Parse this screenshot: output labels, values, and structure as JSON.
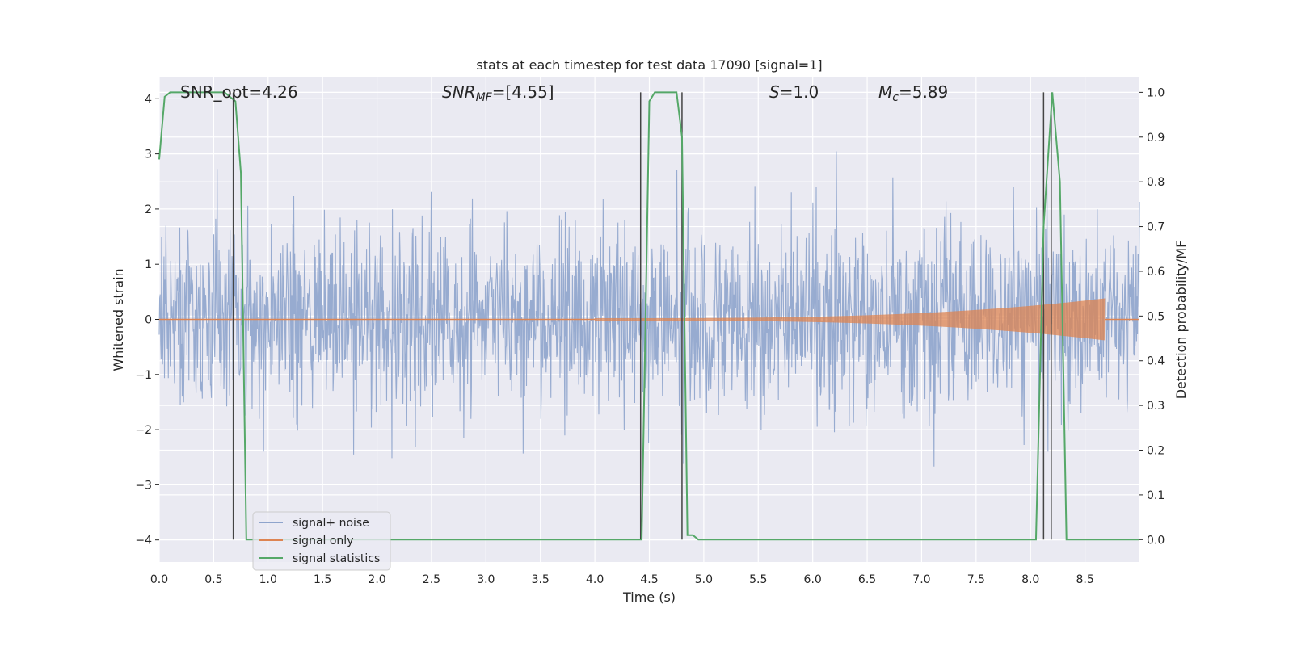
{
  "chart_data": {
    "type": "line",
    "title": "stats at each timestep for test data 17090 [signal=1]",
    "xlabel": "Time (s)",
    "ylabel": "Whitened strain",
    "ylabel_right": "Detection probability/MF",
    "xlim": [
      0.0,
      9.0
    ],
    "ylim": [
      -4.4,
      4.4
    ],
    "ylim_right": [
      -0.05,
      1.035
    ],
    "x_ticks": [
      0.0,
      0.5,
      1.0,
      1.5,
      2.0,
      2.5,
      3.0,
      3.5,
      4.0,
      4.5,
      5.0,
      5.5,
      6.0,
      6.5,
      7.0,
      7.5,
      8.0,
      8.5
    ],
    "x_tick_labels": [
      "0.0",
      "0.5",
      "1.0",
      "1.5",
      "2.0",
      "2.5",
      "3.0",
      "3.5",
      "4.0",
      "4.5",
      "5.0",
      "5.5",
      "6.0",
      "6.5",
      "7.0",
      "7.5",
      "8.0",
      "8.5"
    ],
    "y_ticks": [
      -4,
      -3,
      -2,
      -1,
      0,
      1,
      2,
      3,
      4
    ],
    "y_tick_labels": [
      "−4",
      "−3",
      "−2",
      "−1",
      "0",
      "1",
      "2",
      "3",
      "4"
    ],
    "y_right_ticks": [
      0.0,
      0.1,
      0.2,
      0.3,
      0.4,
      0.5,
      0.6,
      0.7,
      0.8,
      0.9,
      1.0
    ],
    "y_right_tick_labels": [
      "0.0",
      "0.1",
      "0.2",
      "0.3",
      "0.4",
      "0.5",
      "0.6",
      "0.7",
      "0.8",
      "0.9",
      "1.0"
    ],
    "grid": true,
    "legend_position": "lower-left",
    "annotations": [
      {
        "key": "snr_opt",
        "text": "SNR_opt=4.26",
        "x": 0.2
      },
      {
        "key": "snr_mf",
        "text": "SNR",
        "sub": "MF",
        "rest": "=[4.55]",
        "x": 2.6
      },
      {
        "key": "s",
        "text": "S",
        "rest": "=1.0",
        "x": 5.6
      },
      {
        "key": "mc",
        "text": "M",
        "sub": "c",
        "rest": "=5.89",
        "x": 6.6
      }
    ],
    "series": [
      {
        "name": "signal+ noise",
        "color": "#8ea4cc",
        "kind": "noise",
        "envelope_std": 0.8,
        "peak_range": [
          -3.6,
          3.6
        ],
        "samples": 2048
      },
      {
        "name": "signal only",
        "color": "#dd8452",
        "kind": "chirp",
        "t_start": 4.0,
        "t_merge": 8.68,
        "amplitude_start": 0.02,
        "amplitude_peak": 0.38
      },
      {
        "name": "signal statistics",
        "color": "#55a868",
        "kind": "probability",
        "axis": "right",
        "x": [
          0.0,
          0.05,
          0.1,
          0.15,
          0.6,
          0.7,
          0.75,
          0.8,
          4.43,
          4.5,
          4.55,
          4.6,
          4.75,
          4.8,
          4.85,
          4.9,
          4.95,
          8.05,
          8.12,
          8.2,
          8.27,
          8.33,
          9.0
        ],
        "y": [
          0.85,
          0.99,
          1.0,
          1.0,
          1.0,
          0.98,
          0.82,
          0.0,
          0.0,
          0.98,
          1.0,
          1.0,
          1.0,
          0.9,
          0.01,
          0.01,
          0.0,
          0.0,
          0.7,
          1.0,
          0.8,
          0.0,
          0.0
        ]
      }
    ],
    "vertical_lines": [
      0.68,
      4.42,
      4.8,
      8.12,
      8.19
    ]
  }
}
